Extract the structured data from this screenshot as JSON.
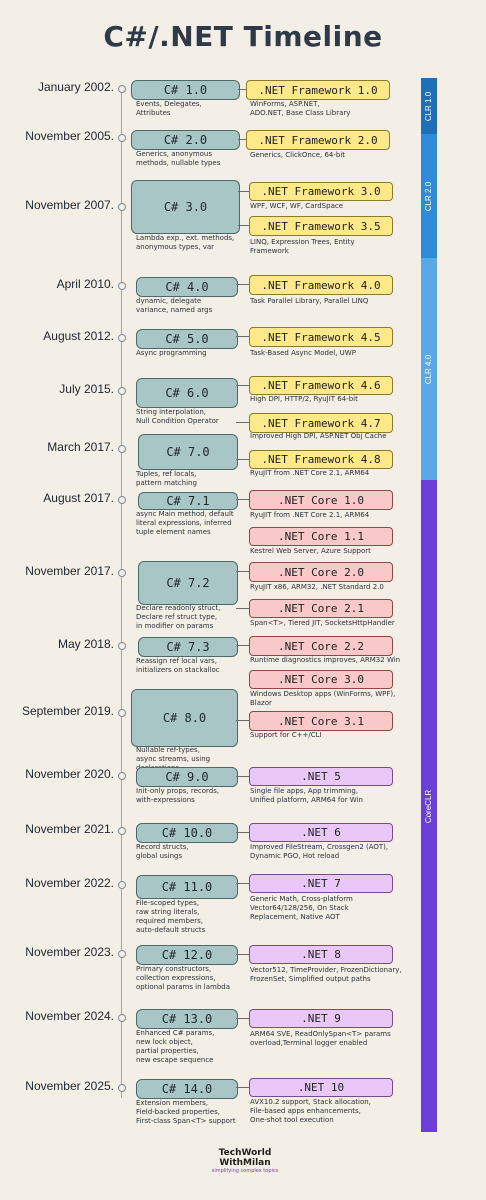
{
  "title": "C#/.NET Timeline",
  "clr": [
    {
      "label": "CLR 1.0",
      "color": "#1e6fb8"
    },
    {
      "label": "CLR 2.0",
      "color": "#2f8ad8"
    },
    {
      "label": "CLR 4.0",
      "color": "#5aa8e6"
    },
    {
      "label": "CoreCLR",
      "color": "#6a3fd6"
    }
  ],
  "entries": [
    {
      "date": "January 2002.",
      "csharp": "C# 1.0",
      "csharp_desc": "Events, Delegates,\nAttributes"
    },
    {
      "date": "November 2005.",
      "csharp": "C# 2.0",
      "csharp_desc": "Generics, anonymous\nmethods, nullable types"
    },
    {
      "date": "November 2007.",
      "csharp": "C# 3.0",
      "csharp_desc": "Lambda exp., ext. methods,\nanonymous types, var"
    },
    {
      "date": "April 2010.",
      "csharp": "C# 4.0",
      "csharp_desc": "dynamic, delegate\nvariance, named args"
    },
    {
      "date": "August 2012.",
      "csharp": "C# 5.0",
      "csharp_desc": "Async programming"
    },
    {
      "date": "July 2015.",
      "csharp": "C# 6.0",
      "csharp_desc": "String interpolation,\nNull Condition Operator"
    },
    {
      "date": "March 2017.",
      "csharp": "C# 7.0",
      "csharp_desc": "Tuples, ref locals,\npattern matching"
    },
    {
      "date": "August 2017.",
      "csharp": "C# 7.1",
      "csharp_desc": "async Main method, default\nliteral expressions, inferred\ntuple element names"
    },
    {
      "date": "November 2017.",
      "csharp": "C# 7.2",
      "csharp_desc": "Declare readonly struct,\nDeclare ref struct type,\nin modifier on params"
    },
    {
      "date": "May 2018.",
      "csharp": "C# 7.3",
      "csharp_desc": "Reassign ref local vars,\ninitializers on stackalloc"
    },
    {
      "date": "September 2019.",
      "csharp": "C# 8.0",
      "csharp_desc": "Nullable ref-types,\nasync streams, using\ndeclarations"
    },
    {
      "date": "November 2020.",
      "csharp": "C# 9.0",
      "csharp_desc": "Init-only props, records,\nwith-expressions"
    },
    {
      "date": "November 2021.",
      "csharp": "C# 10.0",
      "csharp_desc": "Record structs,\nglobal usings"
    },
    {
      "date": "November 2022.",
      "csharp": "C# 11.0",
      "csharp_desc": "File-scoped types,\nraw string literals,\nrequired members,\nauto-default structs"
    },
    {
      "date": "November 2023.",
      "csharp": "C# 12.0",
      "csharp_desc": "Primary constructors,\ncollection expressions,\noptional params in lambda"
    },
    {
      "date": "November 2024.",
      "csharp": "C# 13.0",
      "csharp_desc": "Enhanced C# params,\nnew lock object,\npartial properties,\nnew escape sequence"
    },
    {
      "date": "November 2025.",
      "csharp": "C# 14.0",
      "csharp_desc": "Extension members,\nField-backed properties,\nFirst-class Span<T> support"
    }
  ],
  "frameworks": [
    {
      "label": ".NET Framework 1.0",
      "kind": "fw",
      "desc": "WinForms, ASP.NET,\nADO.NET, Base Class Library"
    },
    {
      "label": ".NET Framework 2.0",
      "kind": "fw",
      "desc": "Generics, ClickOnce, 64-bit"
    },
    {
      "label": ".NET Framework 3.0",
      "kind": "fw",
      "desc": "WPF, WCF, WF, CardSpace"
    },
    {
      "label": ".NET Framework 3.5",
      "kind": "fw",
      "desc": "LINQ, Expression Trees, Entity\nFramework"
    },
    {
      "label": ".NET Framework 4.0",
      "kind": "fw",
      "desc": "Task Parallel Library, Parallel LINQ"
    },
    {
      "label": ".NET Framework 4.5",
      "kind": "fw",
      "desc": "Task-Based Async Model, UWP"
    },
    {
      "label": ".NET Framework 4.6",
      "kind": "fw",
      "desc": "High DPI, HTTP/2, RyuJIT 64-bit"
    },
    {
      "label": ".NET Framework 4.7",
      "kind": "fw",
      "desc": "Improved High DPI, ASP.NET Obj Cache"
    },
    {
      "label": ".NET Framework 4.8",
      "kind": "fw",
      "desc": "RyuJIT from .NET Core 2.1, ARM64"
    },
    {
      "label": ".NET Core 1.0",
      "kind": "core",
      "desc": "RyuJIT from .NET Core 2.1, ARM64"
    },
    {
      "label": ".NET Core 1.1",
      "kind": "core",
      "desc": "Kestrel Web Server, Azure Support"
    },
    {
      "label": ".NET Core 2.0",
      "kind": "core",
      "desc": "RyuJIT x86, ARM32, .NET Standard 2.0"
    },
    {
      "label": ".NET Core 2.1",
      "kind": "core",
      "desc": "Span<T>, Tiered JIT, SocketsHttpHandler"
    },
    {
      "label": ".NET Core 2.2",
      "kind": "core",
      "desc": "Runtime diagnostics improves, ARM32 Win"
    },
    {
      "label": ".NET Core 3.0",
      "kind": "core",
      "desc": "Windows Desktop apps (WinForms, WPF),\nBlazor"
    },
    {
      "label": ".NET Core 3.1",
      "kind": "core",
      "desc": "Support for C++/CLI"
    },
    {
      "label": ".NET 5",
      "kind": "net",
      "desc": "Single file apps, App trimming,\nUnified platform, ARM64 for Win"
    },
    {
      "label": ".NET 6",
      "kind": "net",
      "desc": "Improved FileStream, Crossgen2 (AOT),\nDynamic PGO, Hot reload"
    },
    {
      "label": ".NET 7",
      "kind": "net",
      "desc": "Generic Math, Cross-platform\nVector64/128/256, On Stack\nReplacement, Native AOT"
    },
    {
      "label": ".NET 8",
      "kind": "net",
      "desc": "Vector512, TimeProvider, FrozenDictionary,\nFrozenSet, Simplified output paths"
    },
    {
      "label": ".NET 9",
      "kind": "net",
      "desc": "ARM64 SVE, ReadOnlySpan<T> params\noverload,Terminal logger enabled"
    },
    {
      "label": ".NET 10",
      "kind": "net",
      "desc": "AVX10.2 support, Stack allocation,\nFile-based apps enhancements,\nOne-shot tool execution"
    }
  ],
  "logo": {
    "line1": "TechWorld",
    "line2": "WithMilan",
    "tagline": "simplifying complex topics"
  }
}
